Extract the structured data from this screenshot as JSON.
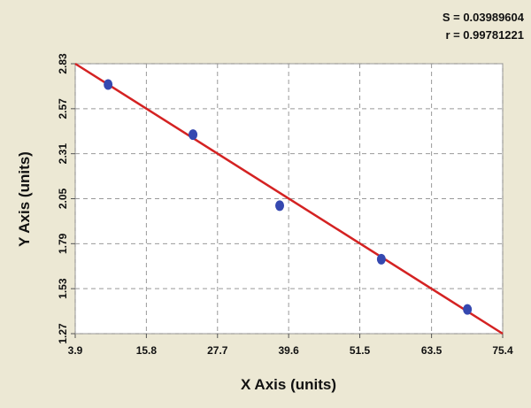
{
  "chart_data": {
    "type": "scatter",
    "annotations": [
      "S = 0.03989604",
      "r = 0.99781221"
    ],
    "x_label": "X Axis (units)",
    "y_label": "Y Axis (units)",
    "series": [
      {
        "color": "#3548b0",
        "x": [
          9.4,
          23.6,
          38.1,
          55.1,
          69.5
        ],
        "values": [
          2.71,
          2.42,
          2.01,
          1.7,
          1.41
        ]
      }
    ],
    "fit_line": {
      "color": "#d42222",
      "x": [
        3.9,
        75.4
      ],
      "y": [
        2.83,
        1.27
      ]
    },
    "xlim": [
      3.9,
      75.4
    ],
    "xticks": [
      3.9,
      15.8,
      27.7,
      39.6,
      51.5,
      63.5,
      75.4
    ],
    "ylim": [
      1.27,
      2.83
    ],
    "yticks": [
      1.27,
      1.53,
      1.79,
      2.05,
      2.31,
      2.57,
      2.83
    ],
    "grid": true
  }
}
